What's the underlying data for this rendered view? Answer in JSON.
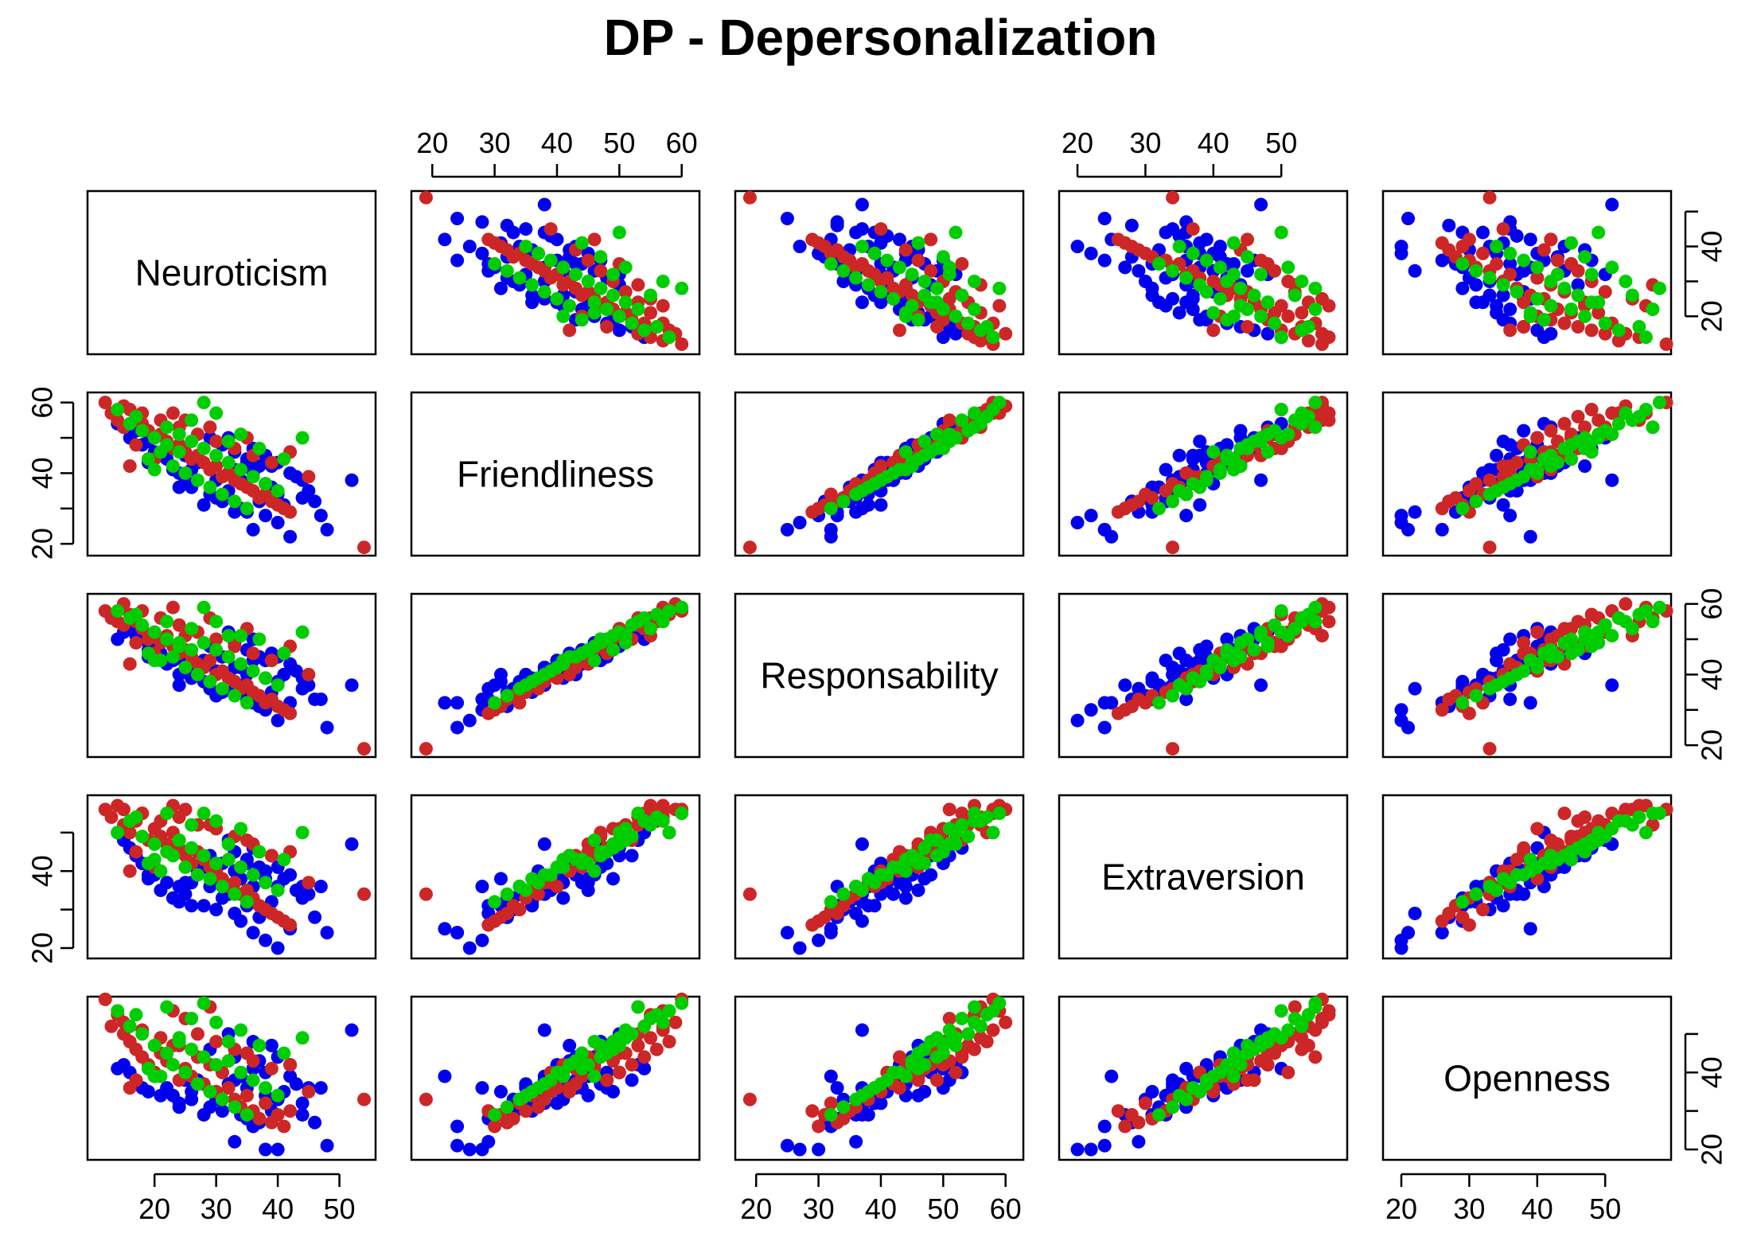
{
  "chart_data": {
    "type": "scatter",
    "title": "DP - Depersonalization",
    "variables": [
      "Neuroticism",
      "Friendliness",
      "Responsability",
      "Extraversion",
      "Openness"
    ],
    "axes": {
      "Neuroticism": {
        "range": [
          11,
          54
        ],
        "ticks": [
          20,
          30,
          40,
          50
        ]
      },
      "Friendliness": {
        "range": [
          18.5,
          61
        ],
        "ticks": [
          20,
          30,
          40,
          50,
          60
        ]
      },
      "Responsability": {
        "range": [
          18.5,
          61
        ],
        "ticks": [
          20,
          30,
          40,
          50,
          60
        ]
      },
      "Extraversion": {
        "range": [
          19,
          58
        ],
        "ticks": [
          20,
          30,
          40,
          50
        ]
      },
      "Openness": {
        "range": [
          19,
          58
        ],
        "ticks": [
          20,
          30,
          40,
          50
        ]
      }
    },
    "group_colors": [
      "#0000ee",
      "#cd2626",
      "#00cd00"
    ],
    "grid": false,
    "legend": "none",
    "series": [
      {
        "color": "#0000ee",
        "points": [
          [
            52,
            38,
            37,
            47,
            51
          ],
          [
            48,
            24,
            25,
            24,
            21
          ],
          [
            47,
            28,
            33,
            36,
            36
          ],
          [
            42,
            22,
            32,
            25,
            39
          ],
          [
            40,
            26,
            27,
            20,
            20
          ],
          [
            38,
            28,
            30,
            22,
            20
          ],
          [
            36,
            24,
            32,
            24,
            26
          ],
          [
            34,
            30,
            37,
            27,
            29
          ],
          [
            33,
            29,
            36,
            29,
            22
          ],
          [
            31,
            32,
            35,
            33,
            30
          ],
          [
            29,
            34,
            36,
            36,
            31
          ],
          [
            28,
            31,
            38,
            31,
            29
          ],
          [
            26,
            36,
            39,
            31,
            35
          ],
          [
            25,
            38,
            42,
            34,
            38
          ],
          [
            24,
            40,
            40,
            36,
            32
          ],
          [
            23,
            41,
            44,
            33,
            34
          ],
          [
            22,
            44,
            43,
            37,
            36
          ],
          [
            21,
            45,
            46,
            35,
            34
          ],
          [
            20,
            46,
            48,
            39,
            40
          ],
          [
            19,
            49,
            47,
            38,
            35
          ],
          [
            18,
            48,
            50,
            42,
            36
          ],
          [
            17,
            52,
            51,
            44,
            38
          ],
          [
            16,
            50,
            53,
            46,
            40
          ],
          [
            15,
            53,
            52,
            48,
            42
          ],
          [
            14,
            54,
            50,
            50,
            41
          ],
          [
            30,
            33,
            34,
            30,
            33
          ],
          [
            32,
            35,
            40,
            34,
            37
          ],
          [
            34,
            38,
            42,
            38,
            39
          ],
          [
            36,
            40,
            44,
            36,
            41
          ],
          [
            38,
            37,
            39,
            40,
            34
          ],
          [
            40,
            34,
            38,
            36,
            33
          ],
          [
            41,
            31,
            40,
            38,
            35
          ],
          [
            43,
            39,
            41,
            35,
            37
          ],
          [
            44,
            33,
            36,
            33,
            29
          ],
          [
            37,
            42,
            45,
            41,
            43
          ],
          [
            35,
            44,
            47,
            43,
            45
          ],
          [
            33,
            46,
            49,
            45,
            44
          ],
          [
            31,
            48,
            45,
            42,
            40
          ],
          [
            29,
            50,
            48,
            44,
            46
          ],
          [
            27,
            43,
            41,
            40,
            38
          ],
          [
            25,
            45,
            43,
            37,
            39
          ],
          [
            39,
            36,
            35,
            32,
            30
          ],
          [
            37,
            32,
            31,
            28,
            27
          ],
          [
            35,
            29,
            33,
            31,
            28
          ],
          [
            42,
            40,
            43,
            39,
            42
          ],
          [
            45,
            35,
            37,
            34,
            36
          ],
          [
            39,
            42,
            46,
            44,
            47
          ],
          [
            36,
            47,
            50,
            46,
            48
          ],
          [
            32,
            50,
            52,
            48,
            50
          ],
          [
            28,
            47,
            44,
            41,
            37
          ],
          [
            26,
            41,
            39,
            37,
            33
          ],
          [
            24,
            36,
            37,
            32,
            31
          ],
          [
            30,
            38,
            41,
            37,
            35
          ],
          [
            33,
            41,
            42,
            40,
            38
          ],
          [
            35,
            43,
            40,
            42,
            36
          ],
          [
            38,
            45,
            44,
            38,
            40
          ],
          [
            40,
            43,
            45,
            41,
            44
          ],
          [
            44,
            38,
            39,
            36,
            32
          ],
          [
            46,
            32,
            33,
            28,
            27
          ],
          [
            19,
            43,
            45,
            39,
            41
          ]
        ]
      },
      {
        "color": "#cd2626",
        "points": [
          [
            54,
            19,
            19,
            34,
            33
          ],
          [
            12,
            60,
            58,
            56,
            59
          ],
          [
            13,
            57,
            56,
            54,
            52
          ],
          [
            14,
            55,
            55,
            57,
            55
          ],
          [
            15,
            53,
            54,
            52,
            50
          ],
          [
            16,
            58,
            57,
            50,
            48
          ],
          [
            17,
            56,
            55,
            53,
            46
          ],
          [
            18,
            54,
            53,
            55,
            44
          ],
          [
            19,
            52,
            50,
            48,
            42
          ],
          [
            20,
            50,
            52,
            51,
            40
          ],
          [
            21,
            51,
            49,
            49,
            45
          ],
          [
            22,
            49,
            51,
            47,
            43
          ],
          [
            23,
            47,
            48,
            50,
            47
          ],
          [
            24,
            48,
            46,
            46,
            38
          ],
          [
            25,
            46,
            47,
            44,
            41
          ],
          [
            26,
            44,
            45,
            42,
            39
          ],
          [
            27,
            45,
            43,
            45,
            44
          ],
          [
            28,
            43,
            42,
            43,
            37
          ],
          [
            29,
            41,
            44,
            41,
            42
          ],
          [
            30,
            42,
            40,
            40,
            35
          ],
          [
            31,
            39,
            41,
            38,
            40
          ],
          [
            32,
            40,
            39,
            36,
            36
          ],
          [
            33,
            38,
            38,
            37,
            33
          ],
          [
            34,
            37,
            36,
            34,
            31
          ],
          [
            35,
            36,
            37,
            35,
            34
          ],
          [
            36,
            35,
            35,
            33,
            30
          ],
          [
            37,
            33,
            34,
            31,
            28
          ],
          [
            38,
            34,
            32,
            30,
            32
          ],
          [
            39,
            32,
            33,
            29,
            27
          ],
          [
            40,
            31,
            31,
            28,
            29
          ],
          [
            41,
            30,
            30,
            27,
            26
          ],
          [
            42,
            29,
            29,
            26,
            30
          ],
          [
            15,
            59,
            60,
            56,
            53
          ],
          [
            18,
            57,
            58,
            55,
            51
          ],
          [
            21,
            55,
            56,
            53,
            49
          ],
          [
            24,
            53,
            54,
            54,
            47
          ],
          [
            27,
            51,
            52,
            52,
            50
          ],
          [
            30,
            49,
            50,
            51,
            48
          ],
          [
            33,
            47,
            48,
            49,
            46
          ],
          [
            36,
            45,
            46,
            47,
            43
          ],
          [
            39,
            43,
            44,
            44,
            41
          ],
          [
            25,
            55,
            51,
            56,
            54
          ],
          [
            20,
            44,
            46,
            41,
            39
          ],
          [
            17,
            48,
            49,
            45,
            38
          ],
          [
            29,
            53,
            56,
            52,
            57
          ],
          [
            23,
            57,
            59,
            57,
            56
          ],
          [
            35,
            50,
            53,
            48,
            45
          ],
          [
            42,
            46,
            48,
            45,
            42
          ],
          [
            45,
            39,
            40,
            37,
            35
          ],
          [
            16,
            42,
            43,
            40,
            36
          ]
        ]
      },
      {
        "color": "#00cd00",
        "points": [
          [
            44,
            50,
            52,
            50,
            49
          ],
          [
            14,
            58,
            58,
            50,
            56
          ],
          [
            16,
            54,
            56,
            53,
            52
          ],
          [
            18,
            52,
            54,
            49,
            50
          ],
          [
            20,
            50,
            52,
            47,
            47
          ],
          [
            22,
            48,
            50,
            45,
            45
          ],
          [
            24,
            46,
            48,
            48,
            48
          ],
          [
            26,
            49,
            47,
            46,
            46
          ],
          [
            28,
            47,
            49,
            44,
            44
          ],
          [
            30,
            45,
            47,
            42,
            42
          ],
          [
            32,
            43,
            45,
            43,
            43
          ],
          [
            34,
            41,
            43,
            41,
            40
          ],
          [
            36,
            39,
            41,
            39,
            38
          ],
          [
            38,
            37,
            39,
            37,
            36
          ],
          [
            40,
            35,
            37,
            35,
            34
          ],
          [
            19,
            44,
            46,
            42,
            41
          ],
          [
            21,
            46,
            44,
            40,
            39
          ],
          [
            23,
            42,
            45,
            44,
            42
          ],
          [
            25,
            40,
            42,
            41,
            40
          ],
          [
            27,
            38,
            40,
            39,
            37
          ],
          [
            29,
            36,
            38,
            38,
            35
          ],
          [
            31,
            34,
            36,
            36,
            33
          ],
          [
            33,
            32,
            34,
            34,
            31
          ],
          [
            35,
            30,
            32,
            32,
            29
          ],
          [
            17,
            56,
            57,
            54,
            55
          ],
          [
            22,
            53,
            55,
            55,
            57
          ],
          [
            26,
            55,
            53,
            52,
            54
          ],
          [
            30,
            57,
            55,
            53,
            53
          ],
          [
            34,
            51,
            51,
            51,
            51
          ],
          [
            28,
            60,
            59,
            55,
            58
          ],
          [
            37,
            47,
            50,
            45,
            47
          ],
          [
            41,
            44,
            46,
            43,
            45
          ],
          [
            24,
            51,
            49,
            48,
            49
          ],
          [
            32,
            49,
            51,
            47,
            48
          ],
          [
            20,
            41,
            44,
            43,
            39
          ]
        ]
      }
    ]
  }
}
